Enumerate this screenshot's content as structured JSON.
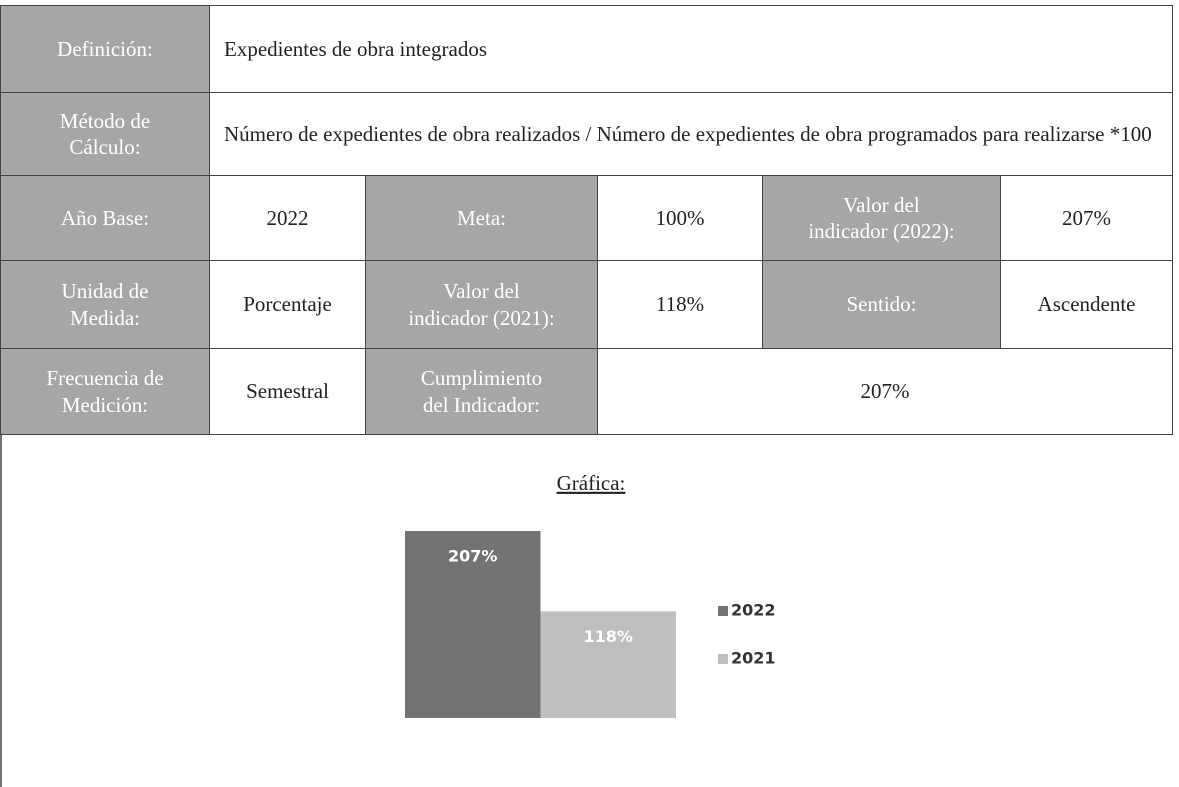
{
  "table": {
    "rows": [
      [
        "Definición:",
        "Expedientes de obra integrados"
      ],
      [
        "Método de\nCálculo:",
        "Número de expedientes de obra realizados / Número de expedientes de obra programados para realizarse *100"
      ],
      [
        "Año Base:",
        "2022",
        "Meta:",
        "100%",
        "Valor del\nindicador (2022):",
        "207%"
      ],
      [
        "Unidad de\nMedida:",
        "Porcentaje",
        "Valor del\nindicador (2021):",
        "118%",
        "Sentido:",
        "Ascendente"
      ],
      [
        "Frecuencia de\nMedición:",
        "Semestral",
        "Cumplimiento\ndel Indicador:",
        "207%"
      ]
    ]
  },
  "chart_data": {
    "type": "bar",
    "title": "Gráfica:",
    "series": [
      {
        "name": "2022",
        "color": "#737373",
        "values": [
          207
        ],
        "value_labels": [
          "207%"
        ]
      },
      {
        "name": "2021",
        "color": "#bfbfbf",
        "values": [
          118
        ],
        "value_labels": [
          "118%"
        ]
      }
    ]
  }
}
